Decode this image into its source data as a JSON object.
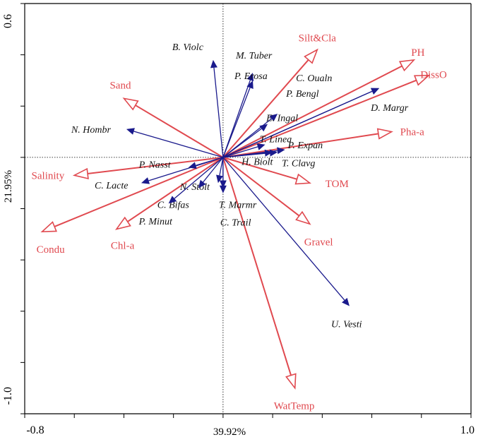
{
  "chart_data": {
    "type": "biplot",
    "x_axis": {
      "range": [
        -0.8,
        1.0
      ],
      "tick_labels": [
        "-0.8",
        "1.0"
      ],
      "title": "39.92%"
    },
    "y_axis": {
      "range": [
        -1.0,
        0.6
      ],
      "tick_labels": [
        "0.6",
        "-1.0"
      ],
      "title": "21.95%"
    },
    "environmental_vectors": [
      {
        "name": "Silt&Cla",
        "x": 0.38,
        "y": 0.42
      },
      {
        "name": "PH",
        "x": 0.77,
        "y": 0.38
      },
      {
        "name": "DissO",
        "x": 0.83,
        "y": 0.32
      },
      {
        "name": "Pha-a",
        "x": 0.68,
        "y": 0.1
      },
      {
        "name": "TOM",
        "x": 0.35,
        "y": -0.1
      },
      {
        "name": "Gravel",
        "x": 0.35,
        "y": -0.26
      },
      {
        "name": "WatTemp",
        "x": 0.29,
        "y": -0.9
      },
      {
        "name": "Sand",
        "x": -0.4,
        "y": 0.23
      },
      {
        "name": "Salinity",
        "x": -0.6,
        "y": -0.07
      },
      {
        "name": "Condu",
        "x": -0.73,
        "y": -0.29
      },
      {
        "name": "Chl-a",
        "x": -0.43,
        "y": -0.28
      }
    ],
    "species_vectors": [
      {
        "name": "B. Violc",
        "x": -0.04,
        "y": 0.38
      },
      {
        "name": "M. Tuber",
        "x": 0.12,
        "y": 0.33
      },
      {
        "name": "P. Erosa",
        "x": 0.12,
        "y": 0.3
      },
      {
        "name": "C. Oualn",
        "x": 0.63,
        "y": 0.27
      },
      {
        "name": "P. Bengl",
        "x": 0.22,
        "y": 0.17
      },
      {
        "name": "D. Margr",
        "x": 0.63,
        "y": 0.27
      },
      {
        "name": "E. Ingal",
        "x": 0.18,
        "y": 0.13
      },
      {
        "name": "N. Hombr",
        "x": -0.39,
        "y": 0.11
      },
      {
        "name": "T. Linea",
        "x": 0.17,
        "y": 0.05
      },
      {
        "name": "P. Expan",
        "x": 0.25,
        "y": 0.03
      },
      {
        "name": "H. Biolt",
        "x": 0.2,
        "y": 0.02
      },
      {
        "name": "T. Clavg",
        "x": 0.22,
        "y": 0.02
      },
      {
        "name": "P. Nasst",
        "x": -0.14,
        "y": -0.04
      },
      {
        "name": "C. Lacte",
        "x": -0.33,
        "y": -0.1
      },
      {
        "name": "N. Stolt",
        "x": -0.02,
        "y": -0.1
      },
      {
        "name": "C. Bifas",
        "x": -0.1,
        "y": -0.12
      },
      {
        "name": "T. Marmr",
        "x": 0.0,
        "y": -0.12
      },
      {
        "name": "C. Trail",
        "x": 0.0,
        "y": -0.14
      },
      {
        "name": "P. Minut",
        "x": -0.22,
        "y": -0.18
      },
      {
        "name": "U. Vesti",
        "x": 0.51,
        "y": -0.58
      }
    ],
    "colors": {
      "environmental": "#e0494f",
      "species": "#1a1a8c"
    },
    "grid": false,
    "zero_lines": true,
    "legend": "none"
  }
}
